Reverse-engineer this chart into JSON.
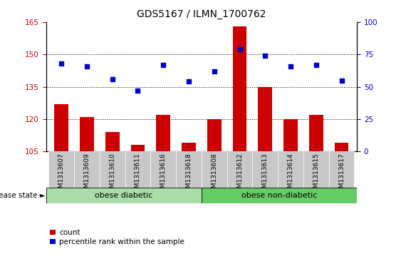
{
  "title": "GDS5167 / ILMN_1700762",
  "samples": [
    "GSM1313607",
    "GSM1313609",
    "GSM1313610",
    "GSM1313611",
    "GSM1313616",
    "GSM1313618",
    "GSM1313608",
    "GSM1313612",
    "GSM1313613",
    "GSM1313614",
    "GSM1313615",
    "GSM1313617"
  ],
  "counts": [
    127,
    121,
    114,
    108,
    122,
    109,
    120,
    163,
    135,
    120,
    122,
    109
  ],
  "percentile_ranks": [
    68,
    66,
    56,
    47,
    67,
    54,
    62,
    79,
    74,
    66,
    67,
    55
  ],
  "ylim_left": [
    105,
    165
  ],
  "ylim_right": [
    0,
    100
  ],
  "yticks_left": [
    105,
    120,
    135,
    150,
    165
  ],
  "yticks_right": [
    0,
    25,
    50,
    75,
    100
  ],
  "bar_color": "#cc0000",
  "dot_color": "#0000cc",
  "group1_label": "obese diabetic",
  "group1_count": 6,
  "group2_label": "obese non-diabetic",
  "group2_count": 6,
  "group_color1": "#aaddaa",
  "group_color2": "#66cc66",
  "disease_state_label": "disease state",
  "legend_count_label": "count",
  "legend_pct_label": "percentile rank within the sample",
  "bg_plot": "#ffffff",
  "bg_xtick": "#c8c8c8",
  "left_axis_color": "#cc0000",
  "right_axis_color": "#0000cc"
}
